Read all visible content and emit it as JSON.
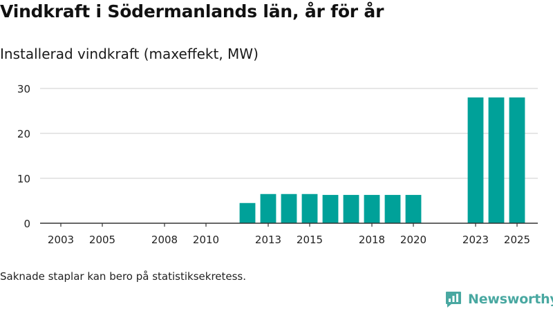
{
  "title": "Vindkraft i Södermanlands län, år för år",
  "subtitle": "Installerad vindkraft (maxeffekt, MW)",
  "note": "Saknade staplar kan bero på statistiksekretess.",
  "brand": {
    "name": "Newsworthy",
    "color": "#49a8a1",
    "icon": "bar-chart-logo-icon"
  },
  "colors": {
    "bar": "#00a199",
    "grid": "#dddddd",
    "axis": "#333333"
  },
  "chart_data": {
    "type": "bar",
    "title": "Vindkraft i Södermanlands län, år för år",
    "ylabel": "Installerad vindkraft (maxeffekt, MW)",
    "xlabel": "",
    "x_range": [
      2002,
      2026
    ],
    "ylim": [
      0,
      30
    ],
    "yticks": [
      0,
      10,
      20,
      30
    ],
    "xticks": [
      2003,
      2005,
      2008,
      2010,
      2013,
      2015,
      2018,
      2020,
      2023,
      2025
    ],
    "categories": [
      2012,
      2013,
      2014,
      2015,
      2016,
      2017,
      2018,
      2019,
      2020,
      2023,
      2024,
      2025
    ],
    "values": [
      4.5,
      6.5,
      6.5,
      6.5,
      6.3,
      6.3,
      6.3,
      6.3,
      6.3,
      28,
      28,
      28
    ],
    "grid": true,
    "legend": "none"
  }
}
